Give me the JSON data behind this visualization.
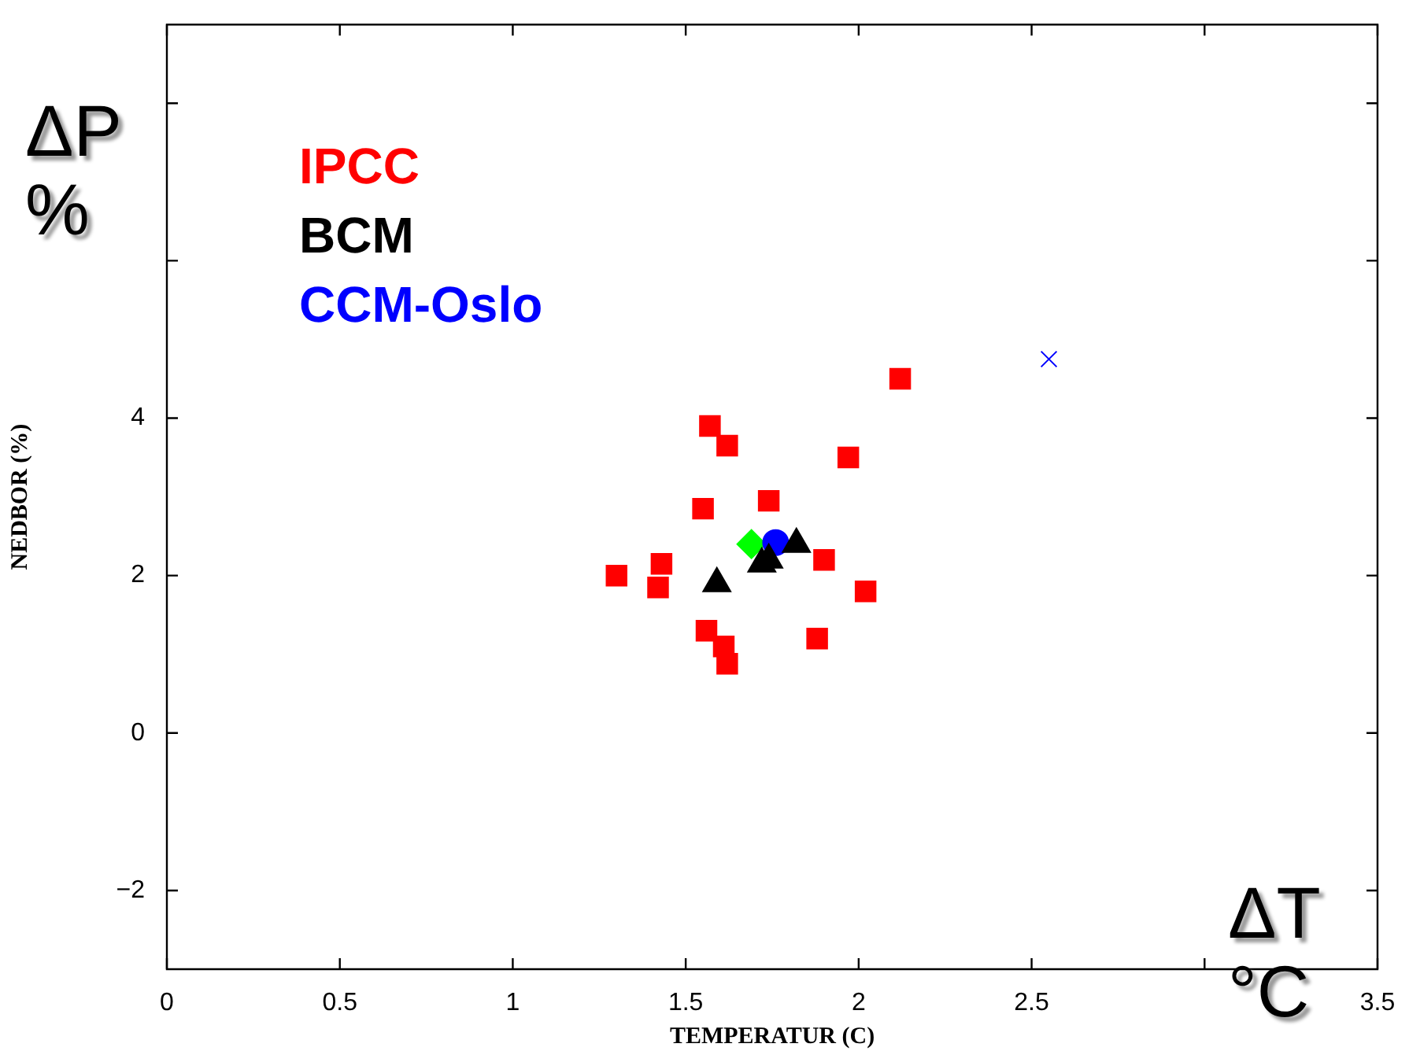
{
  "chart_data": {
    "type": "scatter",
    "xlabel": "TEMPERATUR (C)",
    "ylabel": "NEDBOR (%)",
    "annotations": [
      "ΔP %",
      "ΔT °C"
    ],
    "xlim": [
      0,
      3.5
    ],
    "ylim": [
      -3,
      9
    ],
    "xticks": [
      0,
      0.5,
      1,
      1.5,
      2,
      2.5,
      {
        "value": 3,
        "label": null
      },
      3.5
    ],
    "yticks": [
      {
        "value": -2,
        "label": "−2"
      },
      0,
      2,
      4,
      {
        "value": 6,
        "label": null
      },
      {
        "value": 8,
        "label": null
      }
    ],
    "grid": false,
    "legend": "top left",
    "series": [
      {
        "name": "IPCC",
        "color": "#ff0000",
        "marker": "square",
        "x": [
          2.12,
          1.57,
          1.62,
          1.97,
          1.55,
          1.74,
          1.9,
          1.43,
          1.3,
          1.42,
          2.02,
          1.56,
          1.88,
          1.61,
          1.62
        ],
        "values": [
          4.5,
          3.9,
          3.65,
          3.5,
          2.85,
          2.95,
          2.2,
          2.15,
          2.0,
          1.85,
          1.8,
          1.3,
          1.2,
          1.1,
          0.88
        ]
      },
      {
        "name": "BCM",
        "color": "#000000",
        "marker": "triangle",
        "x": [
          1.59,
          1.72,
          1.74,
          1.82
        ],
        "values": [
          1.9,
          2.15,
          2.2,
          2.4
        ]
      },
      {
        "name": "CCM-Oslo",
        "color": "#0000ff",
        "marker": "circle",
        "x": [
          1.76
        ],
        "values": [
          2.42
        ]
      },
      {
        "color": "#00ff00",
        "marker": "diamond",
        "x": [
          1.69
        ],
        "values": [
          2.4
        ]
      },
      {
        "color": "#0000ff",
        "marker": "cross",
        "x": [
          2.55
        ],
        "values": [
          4.75
        ]
      }
    ]
  }
}
